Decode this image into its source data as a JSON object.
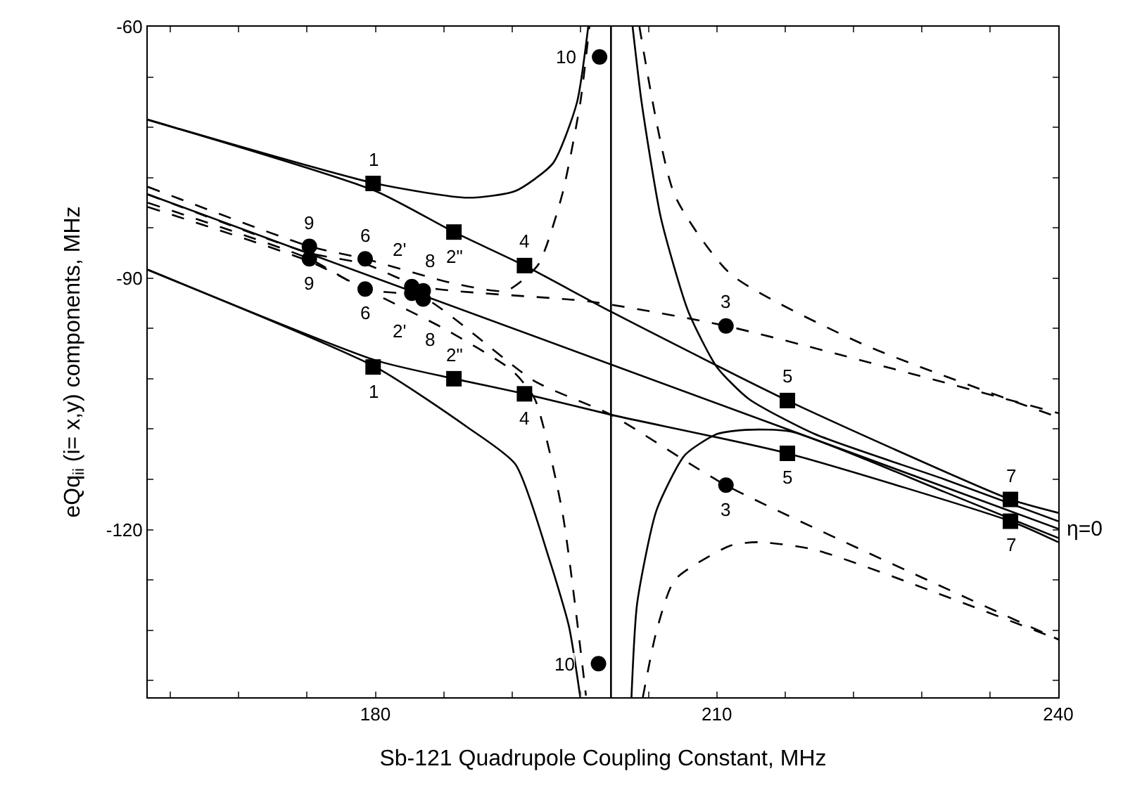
{
  "chart_data": {
    "type": "line",
    "xlabel": "Sb-121 Quadrupole Coupling Constant, MHz",
    "ylabel": "eQq$_{ii}$ (i= x,y) components, MHz",
    "xlim": [
      160,
      240
    ],
    "ylim": [
      -140,
      -60
    ],
    "xticks": [
      {
        "value": 162,
        "label": null
      },
      {
        "value": 168,
        "label": null
      },
      {
        "value": 174,
        "label": null
      },
      180,
      {
        "value": 186,
        "label": null
      },
      {
        "value": 192,
        "label": null
      },
      {
        "value": 198,
        "label": null
      },
      {
        "value": 204,
        "label": null
      },
      210,
      {
        "value": 216,
        "label": null
      },
      {
        "value": 222,
        "label": null
      },
      {
        "value": 228,
        "label": null
      },
      {
        "value": 234,
        "label": null
      },
      240
    ],
    "yticks": [
      -60,
      {
        "value": -66,
        "label": null
      },
      {
        "value": -72,
        "label": null
      },
      {
        "value": -78,
        "label": null
      },
      {
        "value": -84,
        "label": null
      },
      -90,
      {
        "value": -96,
        "label": null
      },
      {
        "value": -102,
        "label": null
      },
      {
        "value": -108,
        "label": null
      },
      {
        "value": -114,
        "label": null
      },
      -120,
      {
        "value": -126,
        "label": null
      },
      {
        "value": -132,
        "label": null
      },
      {
        "value": -138,
        "label": null
      }
    ],
    "legend": false,
    "ref_lines": [
      {
        "axis": "x",
        "value": 200.7,
        "color": "#000000",
        "line_style": "solid"
      }
    ],
    "series": [
      {
        "color": "#000000",
        "line_style": "solid",
        "marker": "none",
        "x": [
          160,
          180,
          188.1,
          192.3,
          195.6,
          197.7,
          198.7
        ],
        "values": [
          -71.1,
          -78.7,
          -80.4,
          -79.6,
          -76.3,
          -69.1,
          -60
        ]
      },
      {
        "color": "#000000",
        "line_style": "solid",
        "marker": "none",
        "x": [
          160,
          180,
          186.9,
          193.1,
          200.7,
          216.2,
          235.8,
          240
        ],
        "values": [
          -71.1,
          -79.6,
          -84.5,
          -88.5,
          -94.0,
          -104.6,
          -116.4,
          -118.0
        ]
      },
      {
        "color": "#000000",
        "line_style": "solid",
        "marker": "none",
        "x": [
          160,
          180,
          188.1,
          192.3,
          195.2,
          197.0,
          198.0
        ],
        "values": [
          -89.0,
          -100.6,
          -107.8,
          -112.2,
          -123.2,
          -131.5,
          -140
        ]
      },
      {
        "color": "#000000",
        "line_style": "solid",
        "marker": "none",
        "x": [
          160,
          180,
          186.9,
          193.1,
          200.7,
          216.2,
          235.8,
          240
        ],
        "values": [
          -89.0,
          -99.8,
          -102.0,
          -103.8,
          -106.3,
          -110.9,
          -119.0,
          -121.5
        ]
      },
      {
        "name": "η=0",
        "color": "#000000",
        "line_style": "solid",
        "marker": "none",
        "x": [
          160,
          240
        ],
        "values": [
          -80.0,
          -119.9
        ]
      },
      {
        "color": "#000000",
        "line_style": "solid",
        "marker": "none",
        "x": [
          202.6,
          203.4,
          205.1,
          207.5,
          210.0,
          212.8,
          218.6,
          230,
          240
        ],
        "values": [
          -60,
          -69.1,
          -82.9,
          -94.0,
          -100.6,
          -104.4,
          -108.6,
          -114.0,
          -119.0
        ]
      },
      {
        "color": "#000000",
        "line_style": "solid",
        "marker": "none",
        "x": [
          202.5,
          203.0,
          204.7,
          207.2,
          210.0,
          212.5,
          216.5,
          230,
          240
        ],
        "values": [
          -140,
          -128.8,
          -117.7,
          -111.1,
          -108.6,
          -108.1,
          -108.3,
          -115.5,
          -121.0
        ]
      },
      {
        "color": "#000000",
        "line_style": "dashed",
        "marker": "none",
        "x": [
          160,
          174.2,
          179.1,
          186.5,
          191.5,
          194.3,
          196.4,
          198.0,
          198.8
        ],
        "values": [
          -79.1,
          -86.2,
          -87.7,
          -90.5,
          -91.5,
          -88.4,
          -80.1,
          -69.1,
          -60
        ]
      },
      {
        "color": "#000000",
        "line_style": "dashed",
        "marker": "none",
        "x": [
          160,
          174.2,
          179.1,
          184,
          198.9,
          210.8,
          240
        ],
        "values": [
          -80.0,
          -87.0,
          -88.3,
          -91.0,
          -92.8,
          -95.7,
          -106.1
        ]
      },
      {
        "color": "#000000",
        "line_style": "dashed",
        "marker": "none",
        "x": [
          203.2,
          206.3,
          211.2,
          222.7,
          240
        ],
        "values": [
          -60,
          -80.1,
          -89.5,
          -97.8,
          -106.6
        ]
      },
      {
        "color": "#000000",
        "line_style": "dashed",
        "marker": "none",
        "x": [
          160,
          174.2,
          179.1,
          184.2,
          194.0,
          200.7,
          210.8,
          240
        ],
        "values": [
          -81.0,
          -87.7,
          -91.3,
          -92.3,
          -102.3,
          -106.3,
          -114.7,
          -133.1
        ]
      },
      {
        "color": "#000000",
        "line_style": "dashed",
        "marker": "none",
        "x": [
          160,
          174.2,
          179.1,
          186,
          192,
          194,
          196.4,
          198.5
        ],
        "values": [
          -81.5,
          -88.0,
          -91.3,
          -96.0,
          -101.0,
          -104.4,
          -117.7,
          -139.8
        ]
      },
      {
        "color": "#000000",
        "line_style": "dashed",
        "marker": "none",
        "x": [
          203.5,
          204.7,
          206.3,
          211.2,
          213.7,
          218.6,
          240
        ],
        "values": [
          -140,
          -132.1,
          -126.0,
          -121.9,
          -121.5,
          -122.4,
          -133.1
        ]
      },
      {
        "type": "scatter",
        "color": "#000000",
        "marker": "square",
        "x": [
          179.8,
          179.8,
          186.9,
          186.9,
          193.1,
          193.1,
          216.2,
          216.2,
          235.8,
          235.8
        ],
        "values": [
          -78.7,
          -100.6,
          -84.5,
          -102.0,
          -88.5,
          -103.8,
          -104.6,
          -110.9,
          -116.4,
          -119.0
        ]
      },
      {
        "type": "scatter",
        "color": "#000000",
        "marker": "circle",
        "x": [
          210.8,
          210.8,
          199.7,
          199.6,
          174.2,
          174.2,
          179.1,
          179.1,
          183.2,
          183.2,
          184.2,
          184.2
        ],
        "values": [
          -95.7,
          -114.7,
          -63.6,
          -136.0,
          -86.2,
          -87.7,
          -87.7,
          -91.3,
          -91.0,
          -91.8,
          -91.5,
          -92.5
        ]
      }
    ],
    "annotations": [
      {
        "text": "1",
        "x": 179.8,
        "y": -78.7
      },
      {
        "text": "1",
        "x": 179.8,
        "y": -100.6
      },
      {
        "text": "2\"",
        "x": 186.9,
        "y": -84.5
      },
      {
        "text": "2\"",
        "x": 186.9,
        "y": -102.0
      },
      {
        "text": "4",
        "x": 193.1,
        "y": -88.5
      },
      {
        "text": "4",
        "x": 193.1,
        "y": -103.8
      },
      {
        "text": "5",
        "x": 216.2,
        "y": -104.6
      },
      {
        "text": "5",
        "x": 216.2,
        "y": -110.9
      },
      {
        "text": "7",
        "x": 235.8,
        "y": -116.4
      },
      {
        "text": "7",
        "x": 235.8,
        "y": -119.0
      },
      {
        "text": "3",
        "x": 210.8,
        "y": -95.7
      },
      {
        "text": "3",
        "x": 210.8,
        "y": -114.7
      },
      {
        "text": "10",
        "x": 199.7,
        "y": -63.6
      },
      {
        "text": "10",
        "x": 199.6,
        "y": -136.0
      },
      {
        "text": "9",
        "x": 174.2,
        "y": -86.2
      },
      {
        "text": "9",
        "x": 174.2,
        "y": -87.7
      },
      {
        "text": "6",
        "x": 179.1,
        "y": -87.7
      },
      {
        "text": "6",
        "x": 179.1,
        "y": -91.3
      },
      {
        "text": "2'",
        "x": 183.2,
        "y": -91.0
      },
      {
        "text": "2'",
        "x": 183.2,
        "y": -91.8
      },
      {
        "text": "8",
        "x": 184.2,
        "y": -91.5
      },
      {
        "text": "8",
        "x": 184.2,
        "y": -92.5
      }
    ]
  }
}
